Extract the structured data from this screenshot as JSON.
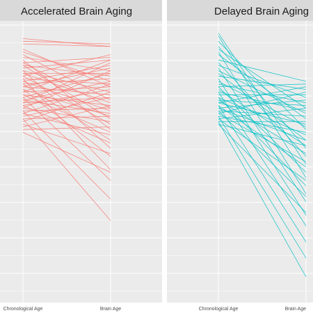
{
  "chart_data": [
    {
      "type": "line",
      "title": "Accelerated Brain Aging",
      "categories": [
        "Chronological Age",
        "Brain Age"
      ],
      "color": "#F8766D",
      "ylim": [
        0,
        1
      ],
      "grid": true,
      "pairs": [
        [
          0.96,
          0.93
        ],
        [
          0.95,
          0.94
        ],
        [
          0.94,
          0.93
        ],
        [
          0.92,
          0.78
        ],
        [
          0.91,
          0.8
        ],
        [
          0.9,
          0.73
        ],
        [
          0.89,
          0.84
        ],
        [
          0.88,
          0.62
        ],
        [
          0.87,
          0.89
        ],
        [
          0.87,
          0.7
        ],
        [
          0.86,
          0.82
        ],
        [
          0.86,
          0.66
        ],
        [
          0.85,
          0.88
        ],
        [
          0.84,
          0.76
        ],
        [
          0.84,
          0.55
        ],
        [
          0.83,
          0.83
        ],
        [
          0.83,
          0.72
        ],
        [
          0.82,
          0.9
        ],
        [
          0.82,
          0.64
        ],
        [
          0.81,
          0.79
        ],
        [
          0.81,
          0.47
        ],
        [
          0.8,
          0.86
        ],
        [
          0.8,
          0.69
        ],
        [
          0.79,
          0.81
        ],
        [
          0.79,
          0.58
        ],
        [
          0.78,
          0.75
        ],
        [
          0.78,
          0.85
        ],
        [
          0.77,
          0.67
        ],
        [
          0.77,
          0.52
        ],
        [
          0.76,
          0.78
        ],
        [
          0.76,
          0.88
        ],
        [
          0.75,
          0.71
        ],
        [
          0.75,
          0.61
        ],
        [
          0.74,
          0.83
        ],
        [
          0.74,
          0.43
        ],
        [
          0.73,
          0.8
        ],
        [
          0.73,
          0.68
        ],
        [
          0.72,
          0.74
        ],
        [
          0.72,
          0.87
        ],
        [
          0.71,
          0.57
        ],
        [
          0.71,
          0.77
        ],
        [
          0.7,
          0.65
        ],
        [
          0.7,
          0.84
        ],
        [
          0.69,
          0.7
        ],
        [
          0.69,
          0.36
        ],
        [
          0.68,
          0.79
        ],
        [
          0.68,
          0.6
        ],
        [
          0.67,
          0.74
        ],
        [
          0.66,
          0.28
        ],
        [
          0.66,
          0.67
        ],
        [
          0.65,
          0.76
        ],
        [
          0.64,
          0.53
        ],
        [
          0.63,
          0.71
        ],
        [
          0.62,
          0.63
        ],
        [
          0.61,
          0.46
        ]
      ]
    },
    {
      "type": "line",
      "title": "Delayed Brain Aging",
      "categories": [
        "Chronological Age",
        "Brain Age"
      ],
      "color": "#00BFC4",
      "ylim": [
        0,
        1
      ],
      "grid": true,
      "pairs": [
        [
          0.98,
          0.49
        ],
        [
          0.97,
          0.44
        ],
        [
          0.95,
          0.62
        ],
        [
          0.93,
          0.55
        ],
        [
          0.92,
          0.7
        ],
        [
          0.91,
          0.38
        ],
        [
          0.9,
          0.66
        ],
        [
          0.88,
          0.8
        ],
        [
          0.87,
          0.52
        ],
        [
          0.86,
          0.74
        ],
        [
          0.85,
          0.35
        ],
        [
          0.84,
          0.68
        ],
        [
          0.83,
          0.58
        ],
        [
          0.82,
          0.77
        ],
        [
          0.81,
          0.3
        ],
        [
          0.8,
          0.63
        ],
        [
          0.79,
          0.72
        ],
        [
          0.78,
          0.46
        ],
        [
          0.78,
          0.79
        ],
        [
          0.77,
          0.56
        ],
        [
          0.76,
          0.69
        ],
        [
          0.76,
          0.26
        ],
        [
          0.75,
          0.75
        ],
        [
          0.74,
          0.6
        ],
        [
          0.74,
          0.41
        ],
        [
          0.73,
          0.71
        ],
        [
          0.73,
          0.53
        ],
        [
          0.72,
          0.78
        ],
        [
          0.72,
          0.64
        ],
        [
          0.71,
          0.48
        ],
        [
          0.71,
          0.2
        ],
        [
          0.7,
          0.73
        ],
        [
          0.7,
          0.58
        ],
        [
          0.69,
          0.67
        ],
        [
          0.69,
          0.37
        ],
        [
          0.68,
          0.76
        ],
        [
          0.68,
          0.5
        ],
        [
          0.67,
          0.61
        ],
        [
          0.67,
          0.14
        ],
        [
          0.66,
          0.7
        ],
        [
          0.66,
          0.43
        ],
        [
          0.65,
          0.65
        ],
        [
          0.65,
          0.07
        ],
        [
          0.64,
          0.56
        ],
        [
          0.64,
          0.31
        ]
      ]
    }
  ]
}
